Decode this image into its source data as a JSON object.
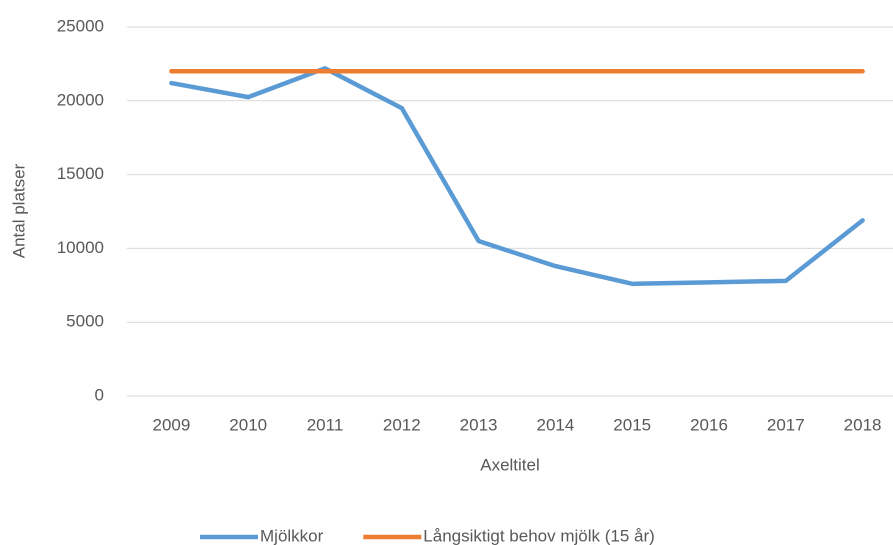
{
  "chart_data": {
    "type": "line",
    "x_label": "Axeltitel",
    "y_label": "Antal platser",
    "categories": [
      "2009",
      "2010",
      "2011",
      "2012",
      "2013",
      "2014",
      "2015",
      "2016",
      "2017",
      "2018"
    ],
    "series": [
      {
        "name": "Mjölkkor",
        "color": "#5b9bd5",
        "values": [
          21200,
          20250,
          22200,
          19500,
          10500,
          8800,
          7600,
          7700,
          7800,
          11900
        ]
      },
      {
        "name": "Långsiktigt behov mjölk (15 år)",
        "color": "#ed7d31",
        "values": [
          22000,
          22000,
          22000,
          22000,
          22000,
          22000,
          22000,
          22000,
          22000,
          22000
        ]
      }
    ],
    "ylim": [
      0,
      25000
    ],
    "yticks": [
      0,
      5000,
      10000,
      15000,
      20000,
      25000
    ],
    "grid": true
  }
}
